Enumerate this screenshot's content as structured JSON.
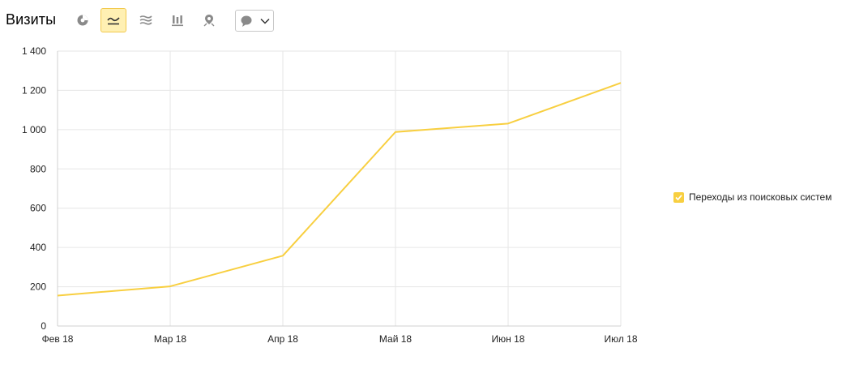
{
  "header": {
    "title": "Визиты"
  },
  "toolbar": {
    "tools": [
      {
        "icon": "pie-chart-icon",
        "active": false
      },
      {
        "icon": "line-chart-icon",
        "active": true
      },
      {
        "icon": "area-chart-icon",
        "active": false
      },
      {
        "icon": "bar-chart-icon",
        "active": false
      },
      {
        "icon": "map-pin-icon",
        "active": false
      }
    ],
    "dropdown_icon": "speech-bubble-icon"
  },
  "colors": {
    "line": "#f8cf40",
    "grid": "#e6e6e6",
    "active_tool_bg": "#fff0b3",
    "icon": "#8a8a8a"
  },
  "chart_data": {
    "type": "line",
    "categories": [
      "Фев 18",
      "Мар 18",
      "Апр 18",
      "Май 18",
      "Июн 18",
      "Июл 18"
    ],
    "series": [
      {
        "name": "Переходы из поисковых систем",
        "values": [
          155,
          202,
          358,
          988,
          1031,
          1238
        ]
      }
    ],
    "ylim": [
      0,
      1400
    ],
    "yticks": [
      0,
      200,
      400,
      600,
      800,
      1000,
      1200,
      1400
    ],
    "ytick_labels": [
      "0",
      "200",
      "400",
      "600",
      "800",
      "1 000",
      "1 200",
      "1 400"
    ],
    "grid": true,
    "legend_position": "right"
  }
}
